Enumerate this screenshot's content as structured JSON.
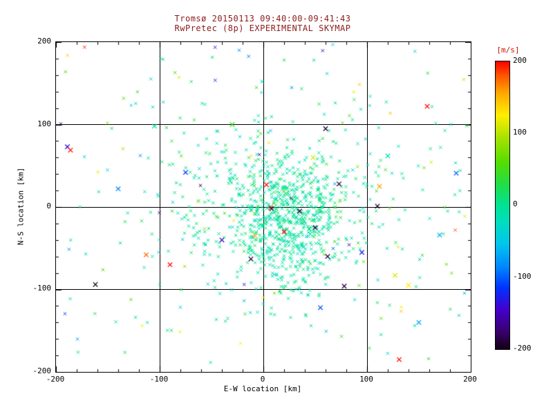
{
  "chart_data": {
    "type": "scatter",
    "title": "Tromsø 20150113 09:40:00-09:41:43",
    "subtitle": "RwPretec (8p) EXPERIMENTAL SKYMAP",
    "xlabel": "E-W location [km]",
    "ylabel": "N-S location [km]",
    "x_range": [
      -200,
      200
    ],
    "y_range": [
      -200,
      200
    ],
    "x_ticks": [
      "-200",
      "-100",
      "0",
      "100",
      "200"
    ],
    "y_ticks": [
      "200",
      "100",
      "0",
      "-100",
      "-200"
    ],
    "grid_x_values": [
      -100,
      0,
      100
    ],
    "grid_y_values": [
      -100,
      0,
      100
    ],
    "axis": {
      "major_step": 100,
      "minor_step": 20,
      "major_len": 8,
      "minor_len": 4
    },
    "marker": "x",
    "marker_sizes": {
      "core": 2.2,
      "outlier": 3.2
    },
    "legend": "none",
    "grid": "on",
    "colorbar": {
      "label": "[m/s]",
      "ticks": [
        "200",
        "100",
        "0",
        "-100",
        "-200"
      ],
      "range": [
        -200,
        200
      ]
    },
    "colormap": [
      {
        "v": -200,
        "c": "#120012"
      },
      {
        "v": -175,
        "c": "#3a0070"
      },
      {
        "v": -145,
        "c": "#4400cc"
      },
      {
        "v": -115,
        "c": "#0033ff"
      },
      {
        "v": -85,
        "c": "#0088ff"
      },
      {
        "v": -55,
        "c": "#00c4ee"
      },
      {
        "v": -25,
        "c": "#00dcc0"
      },
      {
        "v": 0,
        "c": "#00e392"
      },
      {
        "v": 30,
        "c": "#22dd44"
      },
      {
        "v": 60,
        "c": "#55dd00"
      },
      {
        "v": 95,
        "c": "#aae300"
      },
      {
        "v": 125,
        "c": "#ffee00"
      },
      {
        "v": 155,
        "c": "#ffaa00"
      },
      {
        "v": 180,
        "c": "#ff5500"
      },
      {
        "v": 200,
        "c": "#ff0000"
      }
    ],
    "seed": 20150113,
    "point_clusters": [
      {
        "n": 680,
        "cx": 22,
        "cy": -14,
        "sx": 30,
        "sy": 40,
        "v_mean": -5,
        "v_sd": 15
      },
      {
        "n": 280,
        "cx": 8,
        "cy": 8,
        "sx": 62,
        "sy": 55,
        "v_mean": -4,
        "v_sd": 20
      },
      {
        "n": 150,
        "cx": 0,
        "cy": 0,
        "sx": 125,
        "sy": 108,
        "v_mean": 0,
        "v_sd": 45
      }
    ],
    "background_points": {
      "n": 95,
      "x_range": [
        -196,
        196
      ],
      "y_range": [
        -196,
        196
      ],
      "teal_fraction": 0.55,
      "teal_sd": 20,
      "v_range": [
        -200,
        200
      ]
    },
    "outlier_points": [
      [
        -189,
        73,
        -140
      ],
      [
        -186,
        69,
        195
      ],
      [
        -162,
        -94,
        -198
      ],
      [
        -113,
        -58,
        175
      ],
      [
        -90,
        -70,
        198
      ],
      [
        -105,
        98,
        -10
      ],
      [
        -75,
        42,
        -115
      ],
      [
        3,
        27,
        196
      ],
      [
        7,
        -1,
        185
      ],
      [
        73,
        28,
        -192
      ],
      [
        110,
        1,
        -196
      ],
      [
        112,
        25,
        155
      ],
      [
        158,
        122,
        198
      ],
      [
        131,
        -185,
        196
      ],
      [
        140,
        -95,
        125
      ],
      [
        127,
        -83,
        112
      ],
      [
        95,
        -55,
        -125
      ],
      [
        55,
        -122,
        -105
      ],
      [
        -40,
        -40,
        -155
      ],
      [
        170,
        -34,
        -60
      ],
      [
        186,
        41,
        -95
      ],
      [
        120,
        62,
        -15
      ],
      [
        -140,
        22,
        -85
      ],
      [
        60,
        95,
        -188
      ],
      [
        35,
        -5,
        -190
      ],
      [
        8,
        -2,
        -186
      ],
      [
        50,
        -25,
        -192
      ],
      [
        62,
        -60,
        -188
      ],
      [
        78,
        -96,
        -185
      ],
      [
        -12,
        -63,
        -190
      ],
      [
        20,
        -30,
        200
      ],
      [
        -8,
        -35,
        150
      ],
      [
        48,
        60,
        110
      ],
      [
        -30,
        100,
        40
      ],
      [
        150,
        -140,
        -70
      ]
    ]
  },
  "colors": {
    "title": "#8b1a1a",
    "colorbar_label": "#cc1100",
    "axis": "#000000",
    "background": "#ffffff"
  }
}
